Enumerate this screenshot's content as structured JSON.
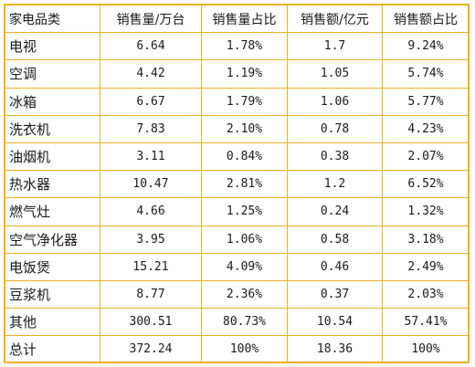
{
  "table": {
    "headers": [
      "家电品类",
      "销售量/万台",
      "销售量占比",
      "销售额/亿元",
      "销售额占比"
    ],
    "rows": [
      [
        "电视",
        "6.64",
        "1.78%",
        "1.7",
        "9.24%"
      ],
      [
        "空调",
        "4.42",
        "1.19%",
        "1.05",
        "5.74%"
      ],
      [
        "冰箱",
        "6.67",
        "1.79%",
        "1.06",
        "5.77%"
      ],
      [
        "洗衣机",
        "7.83",
        "2.10%",
        "0.78",
        "4.23%"
      ],
      [
        "油烟机",
        "3.11",
        "0.84%",
        "0.38",
        "2.07%"
      ],
      [
        "热水器",
        "10.47",
        "2.81%",
        "1.2",
        "6.52%"
      ],
      [
        "燃气灶",
        "4.66",
        "1.25%",
        "0.24",
        "1.32%"
      ],
      [
        "空气净化器",
        "3.95",
        "1.06%",
        "0.58",
        "3.18%"
      ],
      [
        "电饭煲",
        "15.21",
        "4.09%",
        "0.46",
        "2.49%"
      ],
      [
        "豆浆机",
        "8.77",
        "2.36%",
        "0.37",
        "2.03%"
      ],
      [
        "其他",
        "300.51",
        "80.73%",
        "10.54",
        "57.41%"
      ],
      [
        "总计",
        "372.24",
        "100%",
        "18.36",
        "100%"
      ]
    ]
  },
  "colors": {
    "border": "#f0b020",
    "text": "#1a1a1a",
    "background": "#ffffff"
  }
}
